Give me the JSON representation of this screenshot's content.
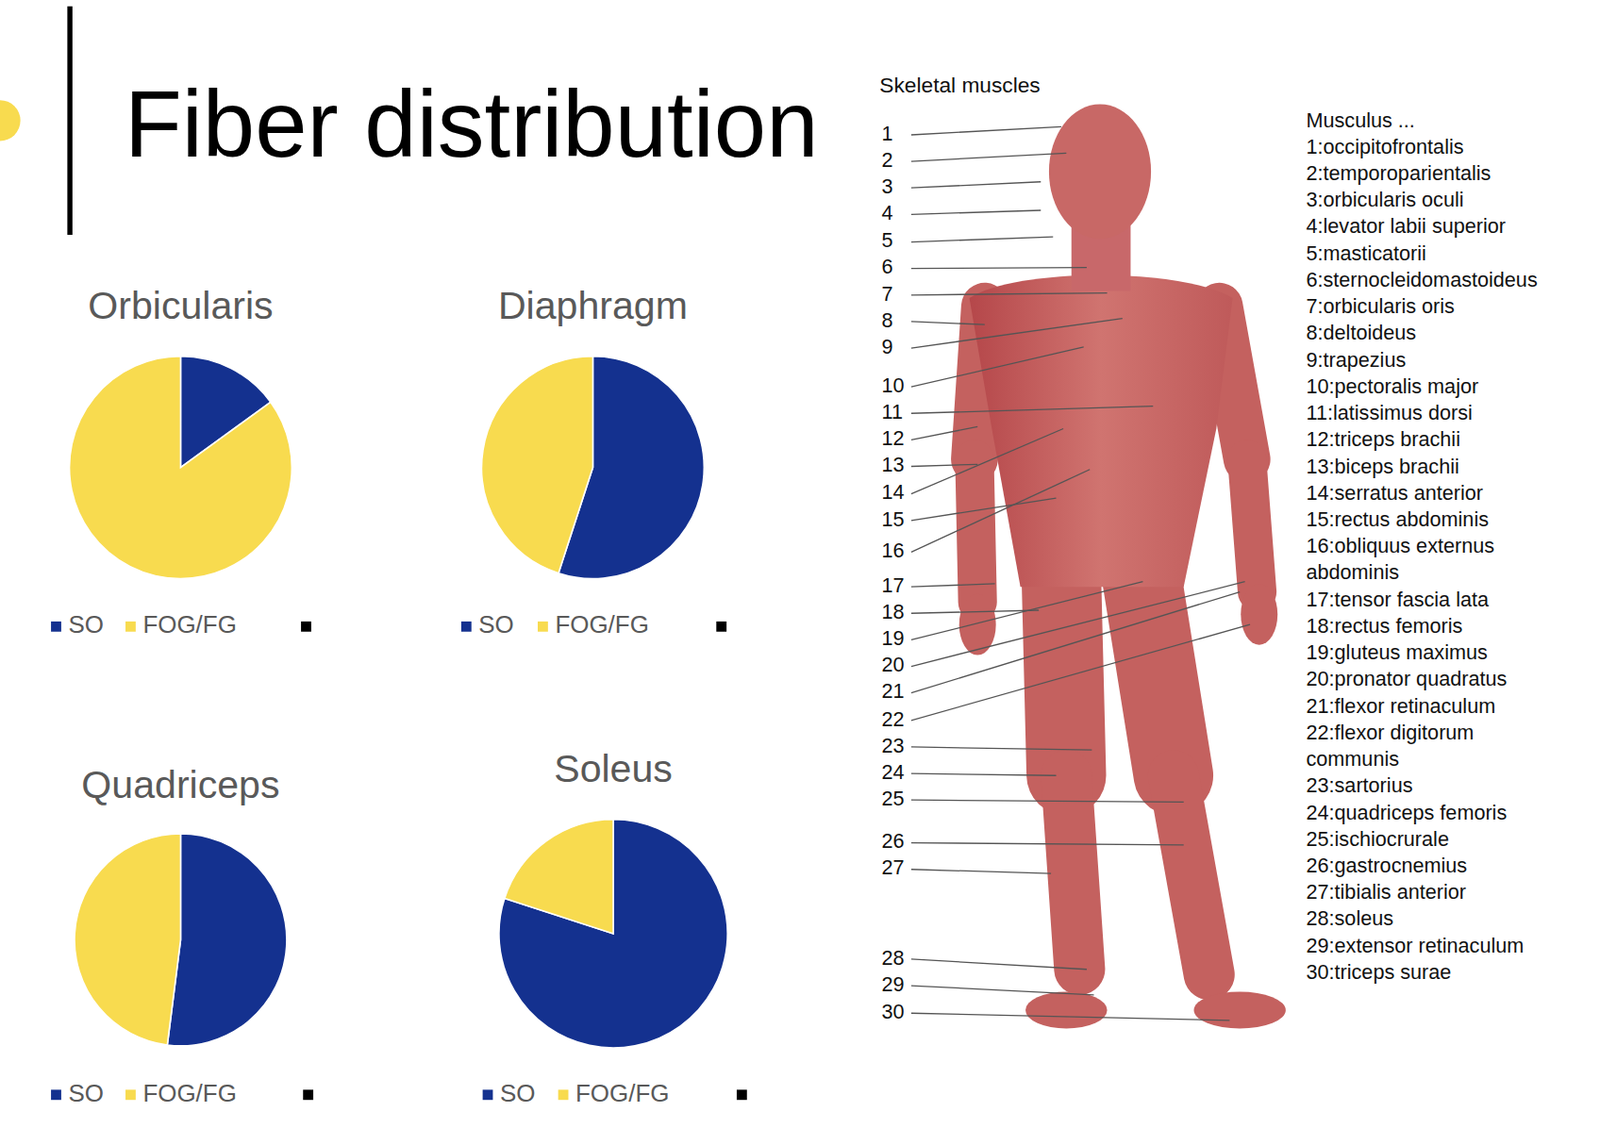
{
  "title": "Fiber distribution",
  "chart_data": [
    {
      "type": "pie",
      "title": "Orbicularis",
      "categories": [
        "SO",
        "FOG/FG"
      ],
      "values": [
        15,
        85
      ],
      "colors": [
        "#14318f",
        "#f8db4f"
      ],
      "legend": "bottom"
    },
    {
      "type": "pie",
      "title": "Diaphragm",
      "categories": [
        "SO",
        "FOG/FG"
      ],
      "values": [
        55,
        45
      ],
      "colors": [
        "#14318f",
        "#f8db4f"
      ],
      "legend": "bottom"
    },
    {
      "type": "pie",
      "title": "Quadriceps",
      "categories": [
        "SO",
        "FOG/FG"
      ],
      "values": [
        52,
        48
      ],
      "colors": [
        "#14318f",
        "#f8db4f"
      ],
      "legend": "bottom"
    },
    {
      "type": "pie",
      "title": "Soleus",
      "categories": [
        "SO",
        "FOG/FG"
      ],
      "values": [
        80,
        20
      ],
      "colors": [
        "#14318f",
        "#f8db4f"
      ],
      "legend": "bottom"
    }
  ],
  "figure": {
    "title": "Skeletal muscles",
    "list_heading": "Musculus ...",
    "markers": [
      1,
      2,
      3,
      4,
      5,
      6,
      7,
      8,
      9,
      10,
      11,
      12,
      13,
      14,
      15,
      16,
      17,
      18,
      19,
      20,
      21,
      22,
      23,
      24,
      25,
      26,
      27,
      28,
      29,
      30
    ],
    "items": [
      {
        "lines": [
          "1:occipitofrontalis"
        ]
      },
      {
        "lines": [
          "2:temporoparientalis"
        ]
      },
      {
        "lines": [
          "3:orbicularis oculi"
        ]
      },
      {
        "lines": [
          "4:levator labii superior"
        ]
      },
      {
        "lines": [
          "5:masticatorii"
        ]
      },
      {
        "lines": [
          "6:sternocleidomastoideus"
        ]
      },
      {
        "lines": [
          "7:orbicularis oris"
        ]
      },
      {
        "lines": [
          "8:deltoideus"
        ]
      },
      {
        "lines": [
          "9:trapezius"
        ]
      },
      {
        "lines": [
          "10:pectoralis major"
        ]
      },
      {
        "lines": [
          "11:latissimus dorsi"
        ]
      },
      {
        "lines": [
          "12:triceps brachii"
        ]
      },
      {
        "lines": [
          "13:biceps brachii"
        ]
      },
      {
        "lines": [
          "14:serratus anterior"
        ]
      },
      {
        "lines": [
          "15:rectus abdominis"
        ]
      },
      {
        "lines": [
          "16:obliquus externus",
          "abdominis"
        ]
      },
      {
        "lines": [
          "17:tensor fascia lata"
        ]
      },
      {
        "lines": [
          "18:rectus femoris"
        ]
      },
      {
        "lines": [
          "19:gluteus maximus"
        ]
      },
      {
        "lines": [
          "20:pronator quadratus"
        ]
      },
      {
        "lines": [
          "21:flexor retinaculum"
        ]
      },
      {
        "lines": [
          "22:flexor digitorum",
          "communis"
        ]
      },
      {
        "lines": [
          "23:sartorius"
        ]
      },
      {
        "lines": [
          "24:quadriceps femoris"
        ]
      },
      {
        "lines": [
          "25:ischiocrurale"
        ]
      },
      {
        "lines": [
          "26:gastrocnemius"
        ]
      },
      {
        "lines": [
          "27:tibialis anterior"
        ]
      },
      {
        "lines": [
          "28:soleus"
        ]
      },
      {
        "lines": [
          "29:extensor retinaculum"
        ]
      },
      {
        "lines": [
          "30:triceps surae"
        ]
      }
    ]
  }
}
